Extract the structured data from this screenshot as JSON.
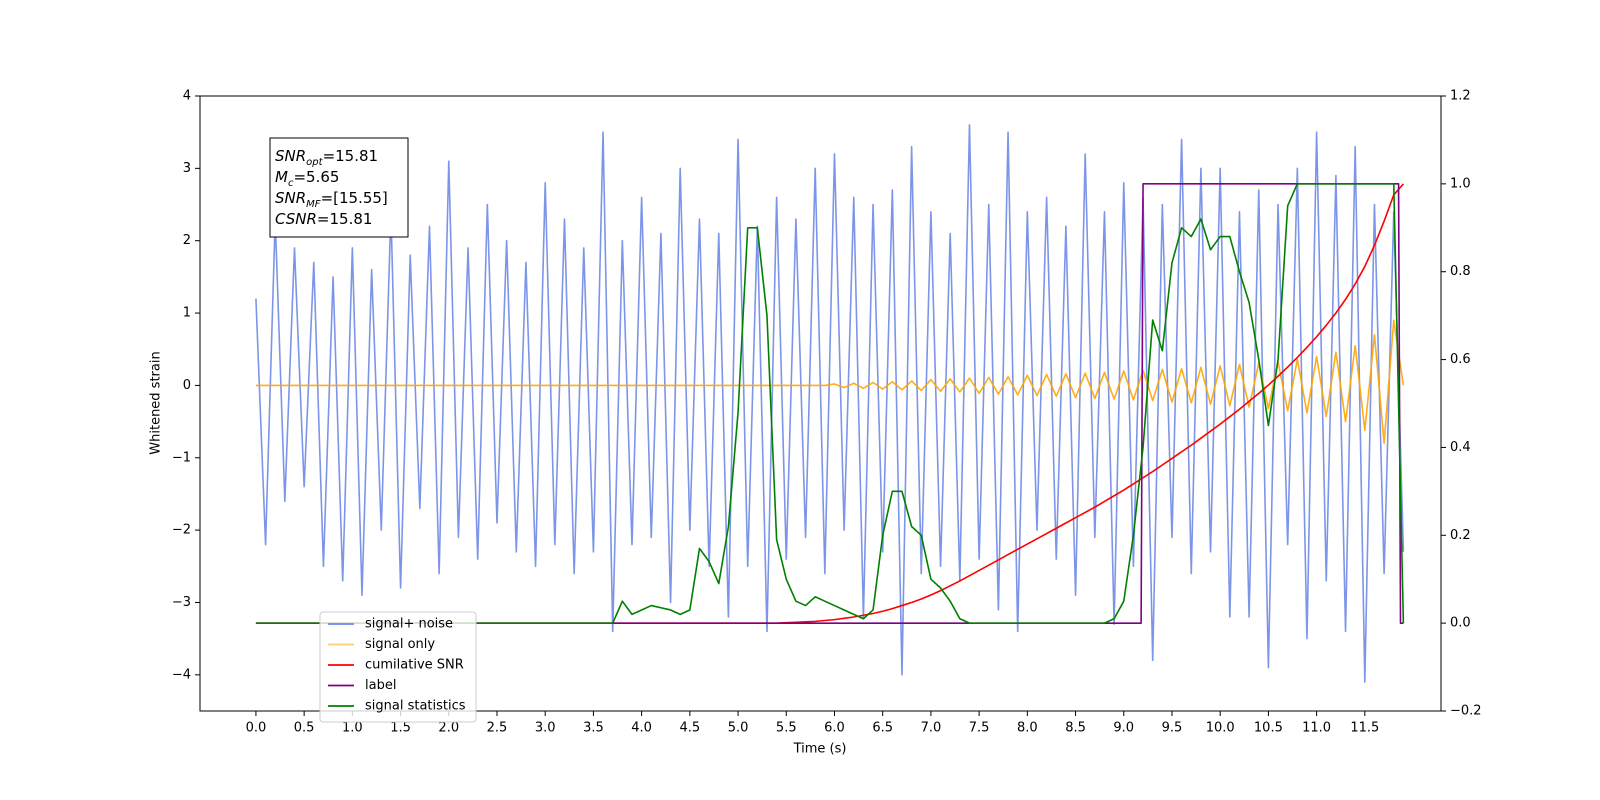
{
  "chart_data": {
    "type": "line",
    "xlabel": "Time (s)",
    "ylabel": "Whitened strain",
    "x": [
      0,
      0.1,
      0.2,
      0.3,
      0.4,
      0.5,
      0.6,
      0.7,
      0.8,
      0.9,
      1,
      1.1,
      1.2,
      1.3,
      1.4,
      1.5,
      1.6,
      1.7,
      1.8,
      1.9,
      2,
      2.1,
      2.2,
      2.3,
      2.4,
      2.5,
      2.6,
      2.7,
      2.8,
      2.9,
      3,
      3.1,
      3.2,
      3.3,
      3.4,
      3.5,
      3.6,
      3.7,
      3.8,
      3.9,
      4,
      4.1,
      4.2,
      4.3,
      4.4,
      4.5,
      4.6,
      4.7,
      4.8,
      4.9,
      5,
      5.1,
      5.2,
      5.3,
      5.4,
      5.5,
      5.6,
      5.7,
      5.8,
      5.9,
      6,
      6.1,
      6.2,
      6.3,
      6.4,
      6.5,
      6.6,
      6.7,
      6.8,
      6.9,
      7,
      7.1,
      7.2,
      7.3,
      7.4,
      7.5,
      7.6,
      7.7,
      7.8,
      7.9,
      8,
      8.1,
      8.2,
      8.3,
      8.4,
      8.5,
      8.6,
      8.7,
      8.8,
      8.9,
      9,
      9.1,
      9.2,
      9.3,
      9.4,
      9.5,
      9.6,
      9.7,
      9.8,
      9.9,
      10,
      10.1,
      10.2,
      10.3,
      10.4,
      10.5,
      10.6,
      10.7,
      10.8,
      10.9,
      11,
      11.1,
      11.2,
      11.3,
      11.4,
      11.5,
      11.6,
      11.7,
      11.8,
      11.9
    ],
    "series": [
      {
        "name": "signal+ noise",
        "color": "#6f8ae6",
        "values": [
          1.2,
          -2.2,
          2.3,
          -1.6,
          1.9,
          -1.4,
          1.7,
          -2.5,
          1.5,
          -2.7,
          1.9,
          -2.9,
          1.6,
          -2.0,
          2.4,
          -2.8,
          1.8,
          -1.7,
          2.2,
          -2.6,
          3.1,
          -2.1,
          1.9,
          -2.4,
          2.5,
          -1.9,
          2.0,
          -2.3,
          1.7,
          -2.5,
          2.8,
          -2.2,
          2.3,
          -2.6,
          1.9,
          -2.3,
          3.5,
          -3.4,
          2.0,
          -2.2,
          2.6,
          -2.1,
          2.1,
          -3.0,
          3.0,
          -2.0,
          2.3,
          -2.5,
          2.1,
          -3.2,
          3.4,
          -2.5,
          2.2,
          -3.4,
          2.6,
          -2.4,
          2.3,
          -2.1,
          3.0,
          -2.6,
          3.2,
          -2.0,
          2.6,
          -3.2,
          2.5,
          -2.3,
          2.7,
          -4.0,
          3.3,
          -2.6,
          2.4,
          -2.5,
          2.1,
          -2.7,
          3.6,
          -2.4,
          2.5,
          -3.1,
          3.5,
          -3.4,
          2.4,
          -2.0,
          2.6,
          -2.4,
          2.2,
          -2.9,
          3.2,
          -2.1,
          2.4,
          -3.3,
          2.8,
          -2.5,
          2.6,
          -3.8,
          2.5,
          -2.1,
          3.4,
          -2.6,
          3.0,
          -2.3,
          3.0,
          -3.2,
          2.4,
          -3.2,
          2.7,
          -3.9,
          2.5,
          -2.2,
          3.0,
          -3.5,
          3.5,
          -2.7,
          2.9,
          -3.4,
          3.3,
          -4.1,
          2.5,
          -2.6,
          2.4,
          -2.3
        ]
      },
      {
        "name": "signal only",
        "color": "#ffa500",
        "values": [
          0,
          0,
          0,
          0,
          0,
          0,
          0,
          0,
          0,
          0,
          0,
          0,
          0,
          0,
          0,
          0,
          0,
          0,
          0,
          0,
          0,
          0,
          0,
          0,
          0,
          0,
          0,
          0,
          0,
          0,
          0,
          0,
          0,
          0,
          0,
          0,
          0,
          0,
          0,
          0,
          0,
          0,
          0,
          0,
          0,
          0,
          0,
          0,
          0,
          0,
          0,
          0,
          0,
          0,
          0,
          0,
          0,
          0,
          0,
          0,
          0.02,
          -0.03,
          0.03,
          -0.04,
          0.04,
          -0.05,
          0.05,
          -0.06,
          0.06,
          -0.07,
          0.08,
          -0.08,
          0.09,
          -0.09,
          0.1,
          -0.11,
          0.11,
          -0.12,
          0.12,
          -0.13,
          0.14,
          -0.14,
          0.15,
          -0.15,
          0.16,
          -0.17,
          0.17,
          -0.18,
          0.18,
          -0.19,
          0.2,
          -0.2,
          0.21,
          -0.21,
          0.22,
          -0.23,
          0.23,
          -0.24,
          0.25,
          -0.26,
          0.27,
          -0.28,
          0.29,
          -0.3,
          0.31,
          -0.32,
          0.33,
          -0.35,
          0.36,
          -0.38,
          0.4,
          -0.43,
          0.46,
          -0.5,
          0.55,
          -0.62,
          0.7,
          -0.8,
          0.9,
          0
        ]
      },
      {
        "name": "cumilative SNR",
        "color": "#ff0000",
        "axis": "y2",
        "values": [
          0,
          0,
          0,
          0,
          0,
          0,
          0,
          0,
          0,
          0,
          0,
          0,
          0,
          0,
          0,
          0,
          0,
          0,
          0,
          0,
          0,
          0,
          0,
          0,
          0,
          0,
          0,
          0,
          0,
          0,
          0,
          0,
          0,
          0,
          0,
          0,
          0,
          0,
          0,
          0,
          0,
          0,
          0,
          0,
          0,
          0,
          0,
          0,
          0,
          0,
          0,
          0,
          0,
          0,
          0,
          0.001,
          0.002,
          0.003,
          0.004,
          0.006,
          0.008,
          0.011,
          0.014,
          0.018,
          0.022,
          0.027,
          0.033,
          0.04,
          0.047,
          0.055,
          0.064,
          0.074,
          0.085,
          0.096,
          0.108,
          0.12,
          0.132,
          0.144,
          0.156,
          0.168,
          0.18,
          0.192,
          0.204,
          0.216,
          0.228,
          0.24,
          0.252,
          0.264,
          0.277,
          0.29,
          0.303,
          0.317,
          0.331,
          0.345,
          0.36,
          0.375,
          0.39,
          0.405,
          0.421,
          0.437,
          0.453,
          0.47,
          0.487,
          0.505,
          0.523,
          0.542,
          0.562,
          0.583,
          0.605,
          0.628,
          0.652,
          0.678,
          0.706,
          0.737,
          0.772,
          0.812,
          0.86,
          0.915,
          0.975,
          1.0
        ]
      },
      {
        "name": "label",
        "color": "#800080",
        "axis": "y2",
        "x": [
          0,
          9.18,
          9.2,
          11.85,
          11.87,
          11.9
        ],
        "values": [
          0,
          0,
          1,
          1,
          0,
          0
        ]
      },
      {
        "name": "signal statistics",
        "color": "#008000",
        "axis": "y2",
        "values": [
          0,
          0,
          0,
          0,
          0,
          0,
          0,
          0,
          0,
          0,
          0,
          0,
          0,
          0,
          0,
          0,
          0,
          0,
          0,
          0,
          0,
          0,
          0,
          0,
          0,
          0,
          0,
          0,
          0,
          0,
          0,
          0,
          0,
          0,
          0,
          0,
          0,
          0,
          0.05,
          0.02,
          0.03,
          0.04,
          0.035,
          0.03,
          0.02,
          0.03,
          0.17,
          0.14,
          0.09,
          0.22,
          0.48,
          0.9,
          0.9,
          0.7,
          0.19,
          0.1,
          0.05,
          0.04,
          0.06,
          0.05,
          0.04,
          0.03,
          0.02,
          0.01,
          0.03,
          0.2,
          0.3,
          0.3,
          0.22,
          0.2,
          0.1,
          0.08,
          0.05,
          0.01,
          0,
          0,
          0,
          0,
          0,
          0,
          0,
          0,
          0,
          0,
          0,
          0,
          0,
          0,
          0,
          0.01,
          0.05,
          0.2,
          0.4,
          0.69,
          0.62,
          0.82,
          0.9,
          0.88,
          0.92,
          0.85,
          0.88,
          0.88,
          0.8,
          0.73,
          0.6,
          0.45,
          0.6,
          0.95,
          1.0,
          1.0,
          1,
          1,
          1,
          1,
          1,
          1,
          1,
          1,
          1,
          0
        ]
      }
    ],
    "xlim": [
      -0.58,
      12.29
    ],
    "xticks": [
      {
        "value": 0,
        "label": "0.0"
      },
      0.5,
      {
        "value": 1,
        "label": "1.0"
      },
      1.5,
      {
        "value": 2,
        "label": "2.0"
      },
      2.5,
      {
        "value": 3,
        "label": "3.0"
      },
      3.5,
      {
        "value": 4,
        "label": "4.0"
      },
      4.5,
      {
        "value": 5,
        "label": "5.0"
      },
      5.5,
      {
        "value": 6,
        "label": "6.0"
      },
      6.5,
      {
        "value": 7,
        "label": "7.0"
      },
      7.5,
      {
        "value": 8,
        "label": "8.0"
      },
      8.5,
      {
        "value": 9,
        "label": "9.0"
      },
      9.5,
      {
        "value": 10,
        "label": "10.0"
      },
      10.5,
      {
        "value": 11,
        "label": "11.0"
      },
      11.5
    ],
    "ylim": [
      -4.5,
      4
    ],
    "yticks": [
      {
        "value": -4,
        "label": "−4"
      },
      {
        "value": -3,
        "label": "−3"
      },
      {
        "value": -2,
        "label": "−2"
      },
      {
        "value": -1,
        "label": "−1"
      },
      0,
      1,
      2,
      3,
      4
    ],
    "y2lim": [
      -0.2,
      1.2
    ],
    "y2ticks": [
      {
        "value": -0.2,
        "label": "−0.2"
      },
      {
        "value": 0,
        "label": "0.0"
      },
      0.2,
      0.4,
      0.6,
      0.8,
      {
        "value": 1,
        "label": "1.0"
      },
      1.2
    ],
    "legend": "lower left",
    "annotations": [
      {
        "main": "SNR",
        "sub": "opt",
        "text": "=15.81"
      },
      {
        "main": "M",
        "sub": "c",
        "text": "=5.65"
      },
      {
        "main": "SNR",
        "sub": "MF",
        "text": "=[15.55]"
      },
      {
        "main": "CSNR",
        "text": "=15.81"
      }
    ]
  }
}
